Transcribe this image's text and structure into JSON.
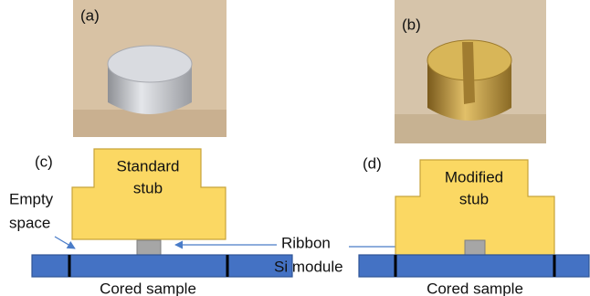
{
  "panels": [
    {
      "label": "(a)"
    },
    {
      "label": "(b)"
    },
    {
      "label": "(c)",
      "stub_lines": [
        "Standard",
        "stub"
      ],
      "side_lines": [
        "Empty",
        "space"
      ],
      "ribbon": "Ribbon",
      "module": "Si module",
      "sample": "Cored sample"
    },
    {
      "label": "(d)",
      "stub_lines": [
        "Modified",
        "stub"
      ],
      "sample": "Cored sample"
    }
  ]
}
